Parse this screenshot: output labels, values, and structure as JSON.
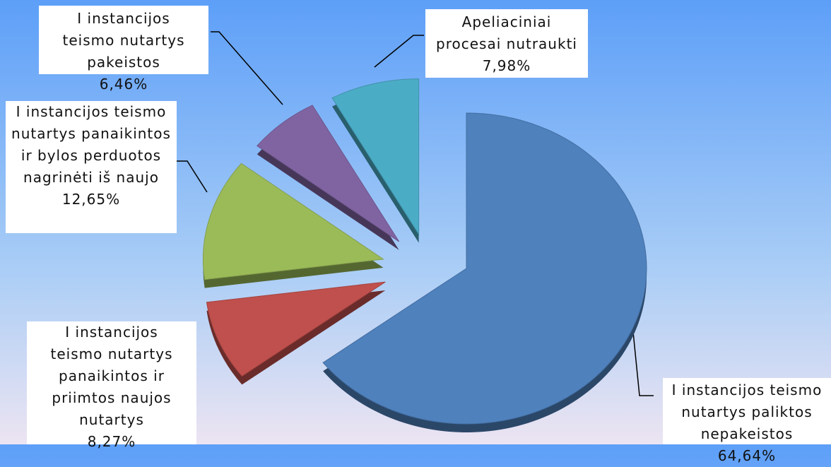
{
  "chart_data": {
    "type": "pie",
    "categories": [
      "I instancijos teismo nutartys paliktos nepakeistos",
      "I instancijos teismo nutartys panaikintos ir priimtos naujos nutartys",
      "I instancijos teismo nutartys panaikintos ir bylos perduotos nagrinėti iš naujo",
      "I instancijos teismo nutartys pakeistos",
      "Apeliaciniai procesai nutraukti"
    ],
    "values": [
      64.64,
      8.27,
      12.65,
      6.46,
      7.98
    ],
    "value_labels": [
      "64,64%",
      "8,27%",
      "12,65%",
      "6,46%",
      "7,98%"
    ],
    "colors": [
      "#4f81bd",
      "#c0504d",
      "#9bbb59",
      "#8064a2",
      "#4bacc6"
    ]
  }
}
